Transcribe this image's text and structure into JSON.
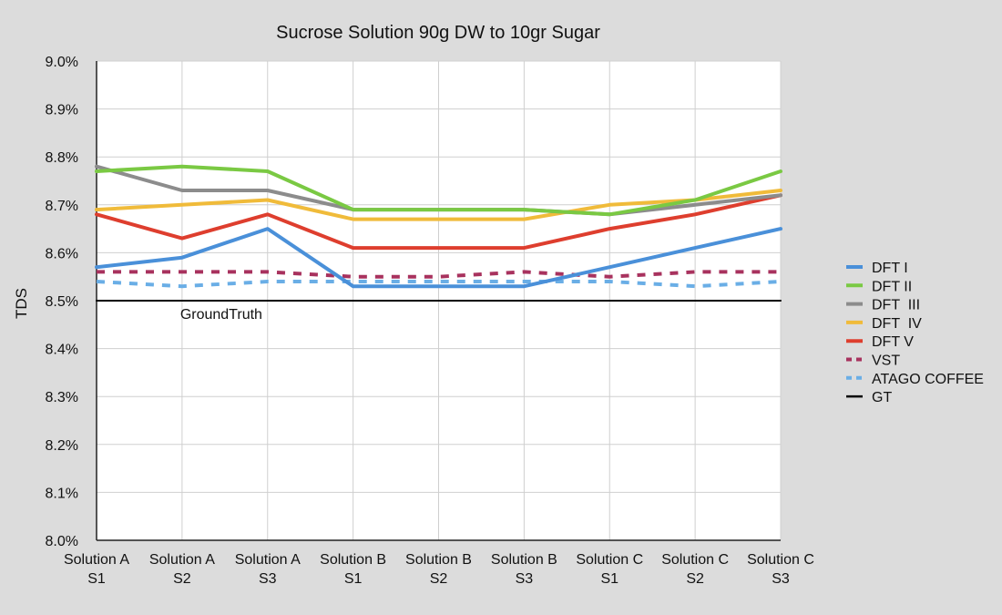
{
  "chart_data": {
    "type": "line",
    "title": "Sucrose Solution 90g DW to 10gr Sugar",
    "xlabel": "",
    "ylabel": "TDS",
    "ylim": [
      8.0,
      9.0
    ],
    "yticks": [
      "8.0%",
      "8.1%",
      "8.2%",
      "8.3%",
      "8.4%",
      "8.5%",
      "8.6%",
      "8.7%",
      "8.8%",
      "8.9%",
      "9.0%"
    ],
    "ytick_values": [
      8.0,
      8.1,
      8.2,
      8.3,
      8.4,
      8.5,
      8.6,
      8.7,
      8.8,
      8.9,
      9.0
    ],
    "categories": [
      [
        "Solution A",
        "S1"
      ],
      [
        "Solution A",
        "S2"
      ],
      [
        "Solution A",
        "S3"
      ],
      [
        "Solution B",
        "S1"
      ],
      [
        "Solution B",
        "S2"
      ],
      [
        "Solution B",
        "S3"
      ],
      [
        "Solution C",
        "S1"
      ],
      [
        "Solution C",
        "S2"
      ],
      [
        "Solution C",
        "S3"
      ]
    ],
    "grid": true,
    "legend_position": "right",
    "annotation": {
      "text": "GroundTruth",
      "category_index": 1,
      "value": 8.5
    },
    "series": [
      {
        "name": "DFT I",
        "color": "#4a90d9",
        "dashed": false,
        "values": [
          8.57,
          8.59,
          8.65,
          8.53,
          8.53,
          8.53,
          8.57,
          8.61,
          8.65
        ]
      },
      {
        "name": "DFT II",
        "color": "#7ac943",
        "dashed": false,
        "values": [
          8.77,
          8.78,
          8.77,
          8.69,
          8.69,
          8.69,
          8.68,
          8.71,
          8.77
        ]
      },
      {
        "name": "DFT  III",
        "color": "#8c8c8c",
        "dashed": false,
        "values": [
          8.78,
          8.73,
          8.73,
          8.69,
          8.69,
          8.69,
          8.68,
          8.7,
          8.72
        ]
      },
      {
        "name": "DFT  IV",
        "color": "#f0bb3a",
        "dashed": false,
        "values": [
          8.69,
          8.7,
          8.71,
          8.67,
          8.67,
          8.67,
          8.7,
          8.71,
          8.73
        ]
      },
      {
        "name": "DFT V",
        "color": "#de3e2e",
        "dashed": false,
        "values": [
          8.68,
          8.63,
          8.68,
          8.61,
          8.61,
          8.61,
          8.65,
          8.68,
          8.72
        ]
      },
      {
        "name": "VST",
        "color": "#a8325e",
        "dashed": true,
        "values": [
          8.56,
          8.56,
          8.56,
          8.55,
          8.55,
          8.56,
          8.55,
          8.56,
          8.56
        ]
      },
      {
        "name": "ATAGO COFFEE",
        "color": "#6aaee6",
        "dashed": true,
        "values": [
          8.54,
          8.53,
          8.54,
          8.54,
          8.54,
          8.54,
          8.54,
          8.53,
          8.54
        ]
      },
      {
        "name": "GT",
        "color": "#000000",
        "dashed": false,
        "values": [
          8.5,
          8.5,
          8.5,
          8.5,
          8.5,
          8.5,
          8.5,
          8.5,
          8.5
        ]
      }
    ]
  }
}
